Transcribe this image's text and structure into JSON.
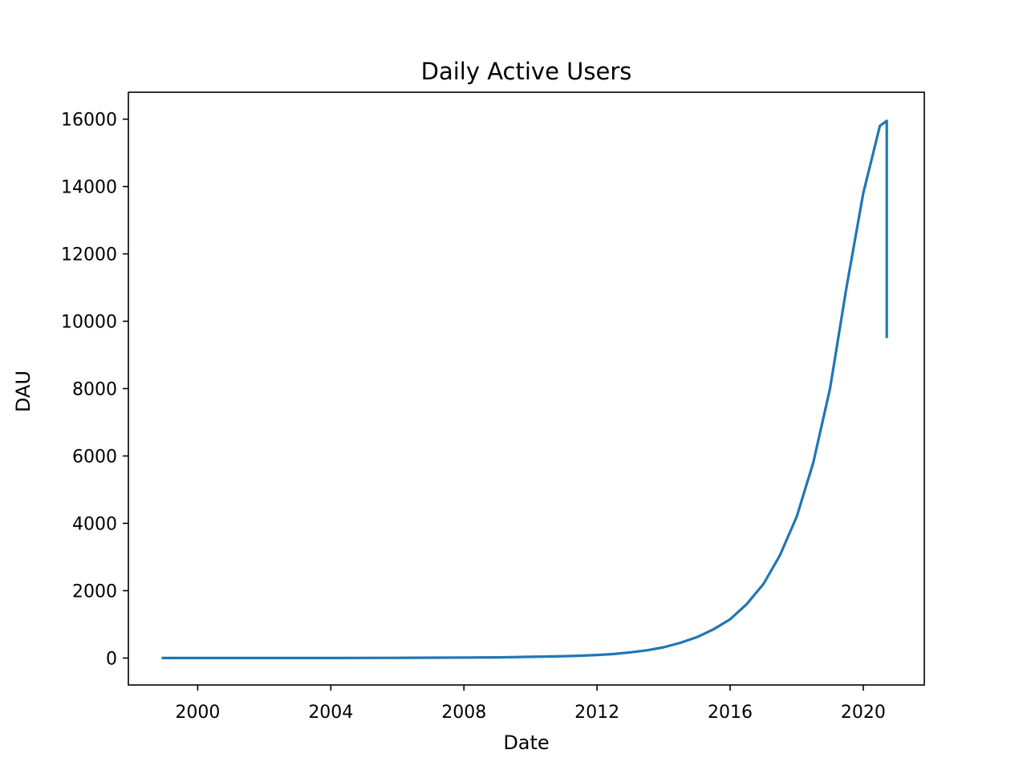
{
  "chart_data": {
    "type": "line",
    "title": "Daily Active Users",
    "xlabel": "Date",
    "ylabel": "DAU",
    "x_ticks": [
      "2000",
      "2004",
      "2008",
      "2012",
      "2016",
      "2020"
    ],
    "y_ticks": [
      "0",
      "2000",
      "4000",
      "6000",
      "8000",
      "10000",
      "12000",
      "14000",
      "16000"
    ],
    "xlim": [
      "1997-12-01",
      "2021-11-01"
    ],
    "ylim": [
      -800,
      16800
    ],
    "grid": false,
    "legend": "none",
    "series": [
      {
        "color": "#1f77b4",
        "x": [
          "1998-12-01",
          "2000-01-01",
          "2002-01-01",
          "2004-01-01",
          "2006-01-01",
          "2007-01-01",
          "2008-01-01",
          "2009-01-01",
          "2010-01-01",
          "2011-01-01",
          "2011-07-01",
          "2012-01-01",
          "2012-07-01",
          "2013-01-01",
          "2013-07-01",
          "2014-01-01",
          "2014-07-01",
          "2015-01-01",
          "2015-07-01",
          "2016-01-01",
          "2016-07-01",
          "2017-01-01",
          "2017-07-01",
          "2018-01-01",
          "2018-07-01",
          "2019-01-01",
          "2019-07-01",
          "2020-01-01",
          "2020-04-01",
          "2020-07-01",
          "2020-09-15",
          "2020-09-15"
        ],
        "y": [
          0,
          0,
          0,
          0,
          5,
          10,
          15,
          20,
          35,
          55,
          70,
          90,
          120,
          170,
          230,
          320,
          450,
          620,
          850,
          1150,
          1600,
          2200,
          3050,
          4200,
          5800,
          8000,
          11000,
          13800,
          14800,
          15800,
          15950,
          9500
        ]
      }
    ]
  }
}
